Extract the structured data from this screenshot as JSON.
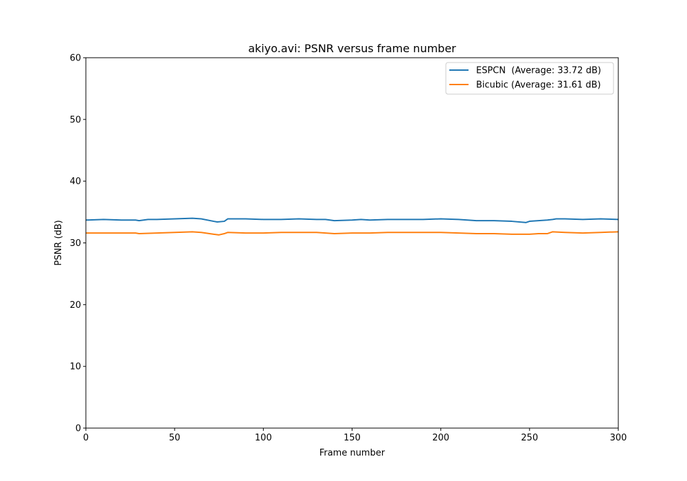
{
  "chart_data": {
    "type": "line",
    "title": "akiyo.avi: PSNR versus frame number",
    "xlabel": "Frame number",
    "ylabel": "PSNR (dB)",
    "xlim": [
      0,
      300
    ],
    "ylim": [
      0,
      60
    ],
    "xticks": [
      0,
      50,
      100,
      150,
      200,
      250,
      300
    ],
    "yticks": [
      0,
      10,
      20,
      30,
      40,
      50,
      60
    ],
    "grid": false,
    "legend_position": "top-right",
    "series": [
      {
        "name": "ESPCN  (Average: 33.72 dB)",
        "color": "#1f77b4",
        "x": [
          0,
          10,
          20,
          28,
          30,
          35,
          40,
          50,
          60,
          65,
          72,
          74,
          78,
          80,
          90,
          100,
          110,
          120,
          130,
          135,
          140,
          150,
          155,
          160,
          170,
          180,
          190,
          200,
          210,
          220,
          230,
          240,
          248,
          250,
          255,
          260,
          263,
          265,
          270,
          280,
          290,
          300
        ],
        "y": [
          33.7,
          33.8,
          33.7,
          33.7,
          33.6,
          33.8,
          33.8,
          33.9,
          34.0,
          33.9,
          33.5,
          33.4,
          33.5,
          33.9,
          33.9,
          33.8,
          33.8,
          33.9,
          33.8,
          33.8,
          33.6,
          33.7,
          33.8,
          33.7,
          33.8,
          33.8,
          33.8,
          33.9,
          33.8,
          33.6,
          33.6,
          33.5,
          33.3,
          33.5,
          33.6,
          33.7,
          33.8,
          33.9,
          33.9,
          33.8,
          33.9,
          33.8
        ]
      },
      {
        "name": "Bicubic (Average: 31.61 dB)",
        "color": "#ff7f0e",
        "x": [
          0,
          10,
          20,
          28,
          30,
          40,
          50,
          60,
          65,
          72,
          75,
          78,
          80,
          90,
          100,
          110,
          120,
          130,
          140,
          150,
          160,
          170,
          180,
          190,
          200,
          210,
          220,
          230,
          240,
          250,
          255,
          260,
          263,
          270,
          280,
          290,
          300
        ],
        "y": [
          31.6,
          31.6,
          31.6,
          31.6,
          31.5,
          31.6,
          31.7,
          31.8,
          31.7,
          31.4,
          31.3,
          31.5,
          31.7,
          31.6,
          31.6,
          31.7,
          31.7,
          31.7,
          31.5,
          31.6,
          31.6,
          31.7,
          31.7,
          31.7,
          31.7,
          31.6,
          31.5,
          31.5,
          31.4,
          31.4,
          31.5,
          31.5,
          31.8,
          31.7,
          31.6,
          31.7,
          31.8
        ]
      }
    ]
  }
}
